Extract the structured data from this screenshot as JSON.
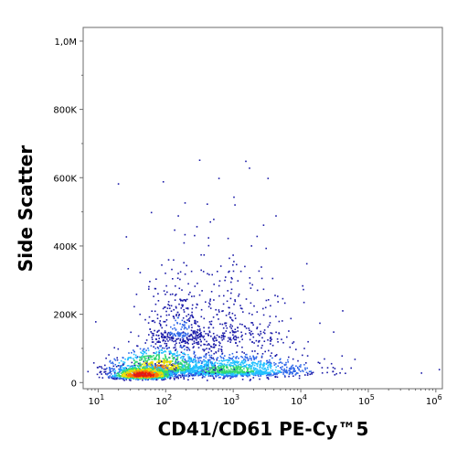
{
  "chart_data": {
    "type": "scatter",
    "xlabel": "CD41/CD61 PE-Cy™5",
    "ylabel": "Side Scatter",
    "x_scale": "log",
    "y_scale": "linear",
    "xlim": [
      6,
      1250000
    ],
    "ylim": [
      -18000,
      1040000
    ],
    "x_ticks": [
      {
        "value": 10,
        "label": "10",
        "exp": "1"
      },
      {
        "value": 100,
        "label": "10",
        "exp": "2"
      },
      {
        "value": 1000,
        "label": "10",
        "exp": "3"
      },
      {
        "value": 10000,
        "label": "10",
        "exp": "4"
      },
      {
        "value": 100000,
        "label": "10",
        "exp": "5"
      },
      {
        "value": 1000000,
        "label": "10",
        "exp": "6"
      }
    ],
    "y_ticks": [
      {
        "value": 0,
        "label": "0"
      },
      {
        "value": 200000,
        "label": "200K"
      },
      {
        "value": 400000,
        "label": "400K"
      },
      {
        "value": 600000,
        "label": "600K"
      },
      {
        "value": 800000,
        "label": "800K"
      },
      {
        "value": 1000000,
        "label": "1,0M"
      }
    ],
    "density_colors": [
      "#1a1aa8",
      "#2d66e8",
      "#21c0ff",
      "#30d870",
      "#e8e000",
      "#ff7a00",
      "#e61a10"
    ],
    "clusters": [
      {
        "x_log_center": 1.65,
        "x_log_sd": 0.22,
        "y_center": 22000,
        "y_sd": 14000,
        "count": 900,
        "density": 0.95
      },
      {
        "x_log_center": 1.9,
        "x_log_sd": 0.35,
        "y_center": 45000,
        "y_sd": 30000,
        "count": 900,
        "density": 0.65
      },
      {
        "x_log_center": 2.9,
        "x_log_sd": 0.6,
        "y_center": 35000,
        "y_sd": 25000,
        "count": 1300,
        "density": 0.45
      },
      {
        "x_log_center": 2.2,
        "x_log_sd": 0.25,
        "y_center": 150000,
        "y_sd": 70000,
        "count": 350,
        "density": 0.15
      },
      {
        "x_log_center": 3.0,
        "x_log_sd": 0.5,
        "y_center": 150000,
        "y_sd": 80000,
        "count": 300,
        "density": 0.08
      },
      {
        "x_log_center": 2.5,
        "x_log_sd": 0.5,
        "y_center": 350000,
        "y_sd": 120000,
        "count": 60,
        "density": 0.05
      }
    ],
    "outliers": [
      {
        "x": 60,
        "y": 500000
      },
      {
        "x": 90,
        "y": 590000
      },
      {
        "x": 600,
        "y": 600000
      },
      {
        "x": 1500,
        "y": 650000
      },
      {
        "x": 1700,
        "y": 630000
      },
      {
        "x": 3200,
        "y": 600000
      },
      {
        "x": 1000,
        "y": 545000
      },
      {
        "x": 4200,
        "y": 490000
      },
      {
        "x": 150,
        "y": 490000
      },
      {
        "x": 2200,
        "y": 430000
      },
      {
        "x": 12000,
        "y": 350000
      },
      {
        "x": 30000,
        "y": 150000
      },
      {
        "x": 600000,
        "y": 30000
      },
      {
        "x": 1100000,
        "y": 40000
      },
      {
        "x": 9,
        "y": 180000
      },
      {
        "x": 40000,
        "y": 80000
      }
    ]
  }
}
